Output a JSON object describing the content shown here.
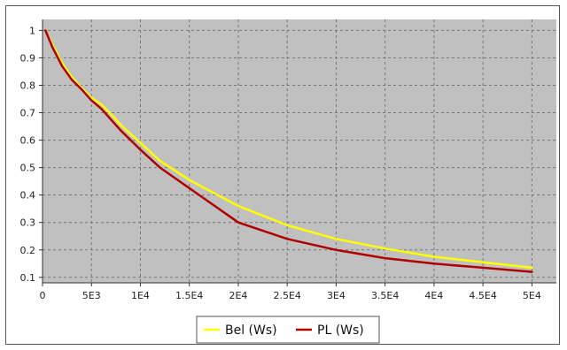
{
  "chart_data": {
    "type": "line",
    "title": "",
    "xlabel": "",
    "ylabel": "",
    "xlim": [
      0,
      52500
    ],
    "ylim": [
      0.08,
      1.04
    ],
    "x_ticks": [
      0,
      5000,
      10000,
      15000,
      20000,
      25000,
      30000,
      35000,
      40000,
      45000,
      50000
    ],
    "x_tick_labels": [
      "0",
      "5E3",
      "1E4",
      "1.5E4",
      "2E4",
      "2.5E4",
      "3E4",
      "3.5E4",
      "4E4",
      "4.5E4",
      "5E4"
    ],
    "y_ticks": [
      0.1,
      0.2,
      0.3,
      0.4,
      0.5,
      0.6,
      0.7,
      0.8,
      0.9,
      1.0
    ],
    "y_tick_labels": [
      "0.1",
      "0.2",
      "0.3",
      "0.4",
      "0.5",
      "0.6",
      "0.7",
      "0.8",
      "0.9",
      "1"
    ],
    "grid": true,
    "legend_position": "bottom-center",
    "plot_background": "#c0c0c0",
    "series": [
      {
        "name": "Bel (Ws)",
        "color": "#ffff00",
        "x": [
          300,
          1000,
          2000,
          3000,
          4000,
          5000,
          6000,
          7000,
          8000,
          10000,
          12000,
          15000,
          20000,
          25000,
          30000,
          35000,
          40000,
          45000,
          50000
        ],
        "y": [
          1.0,
          0.95,
          0.88,
          0.83,
          0.79,
          0.755,
          0.73,
          0.695,
          0.655,
          0.59,
          0.525,
          0.455,
          0.36,
          0.29,
          0.24,
          0.205,
          0.175,
          0.155,
          0.135
        ]
      },
      {
        "name": "PL (Ws)",
        "color": "#b00000",
        "x": [
          300,
          1000,
          2000,
          3000,
          4000,
          5000,
          6000,
          7000,
          8000,
          10000,
          12000,
          15000,
          20000,
          25000,
          30000,
          35000,
          40000,
          45000,
          50000
        ],
        "y": [
          1.0,
          0.94,
          0.87,
          0.82,
          0.785,
          0.745,
          0.715,
          0.675,
          0.635,
          0.565,
          0.5,
          0.425,
          0.3,
          0.24,
          0.2,
          0.17,
          0.15,
          0.135,
          0.12
        ]
      }
    ]
  }
}
